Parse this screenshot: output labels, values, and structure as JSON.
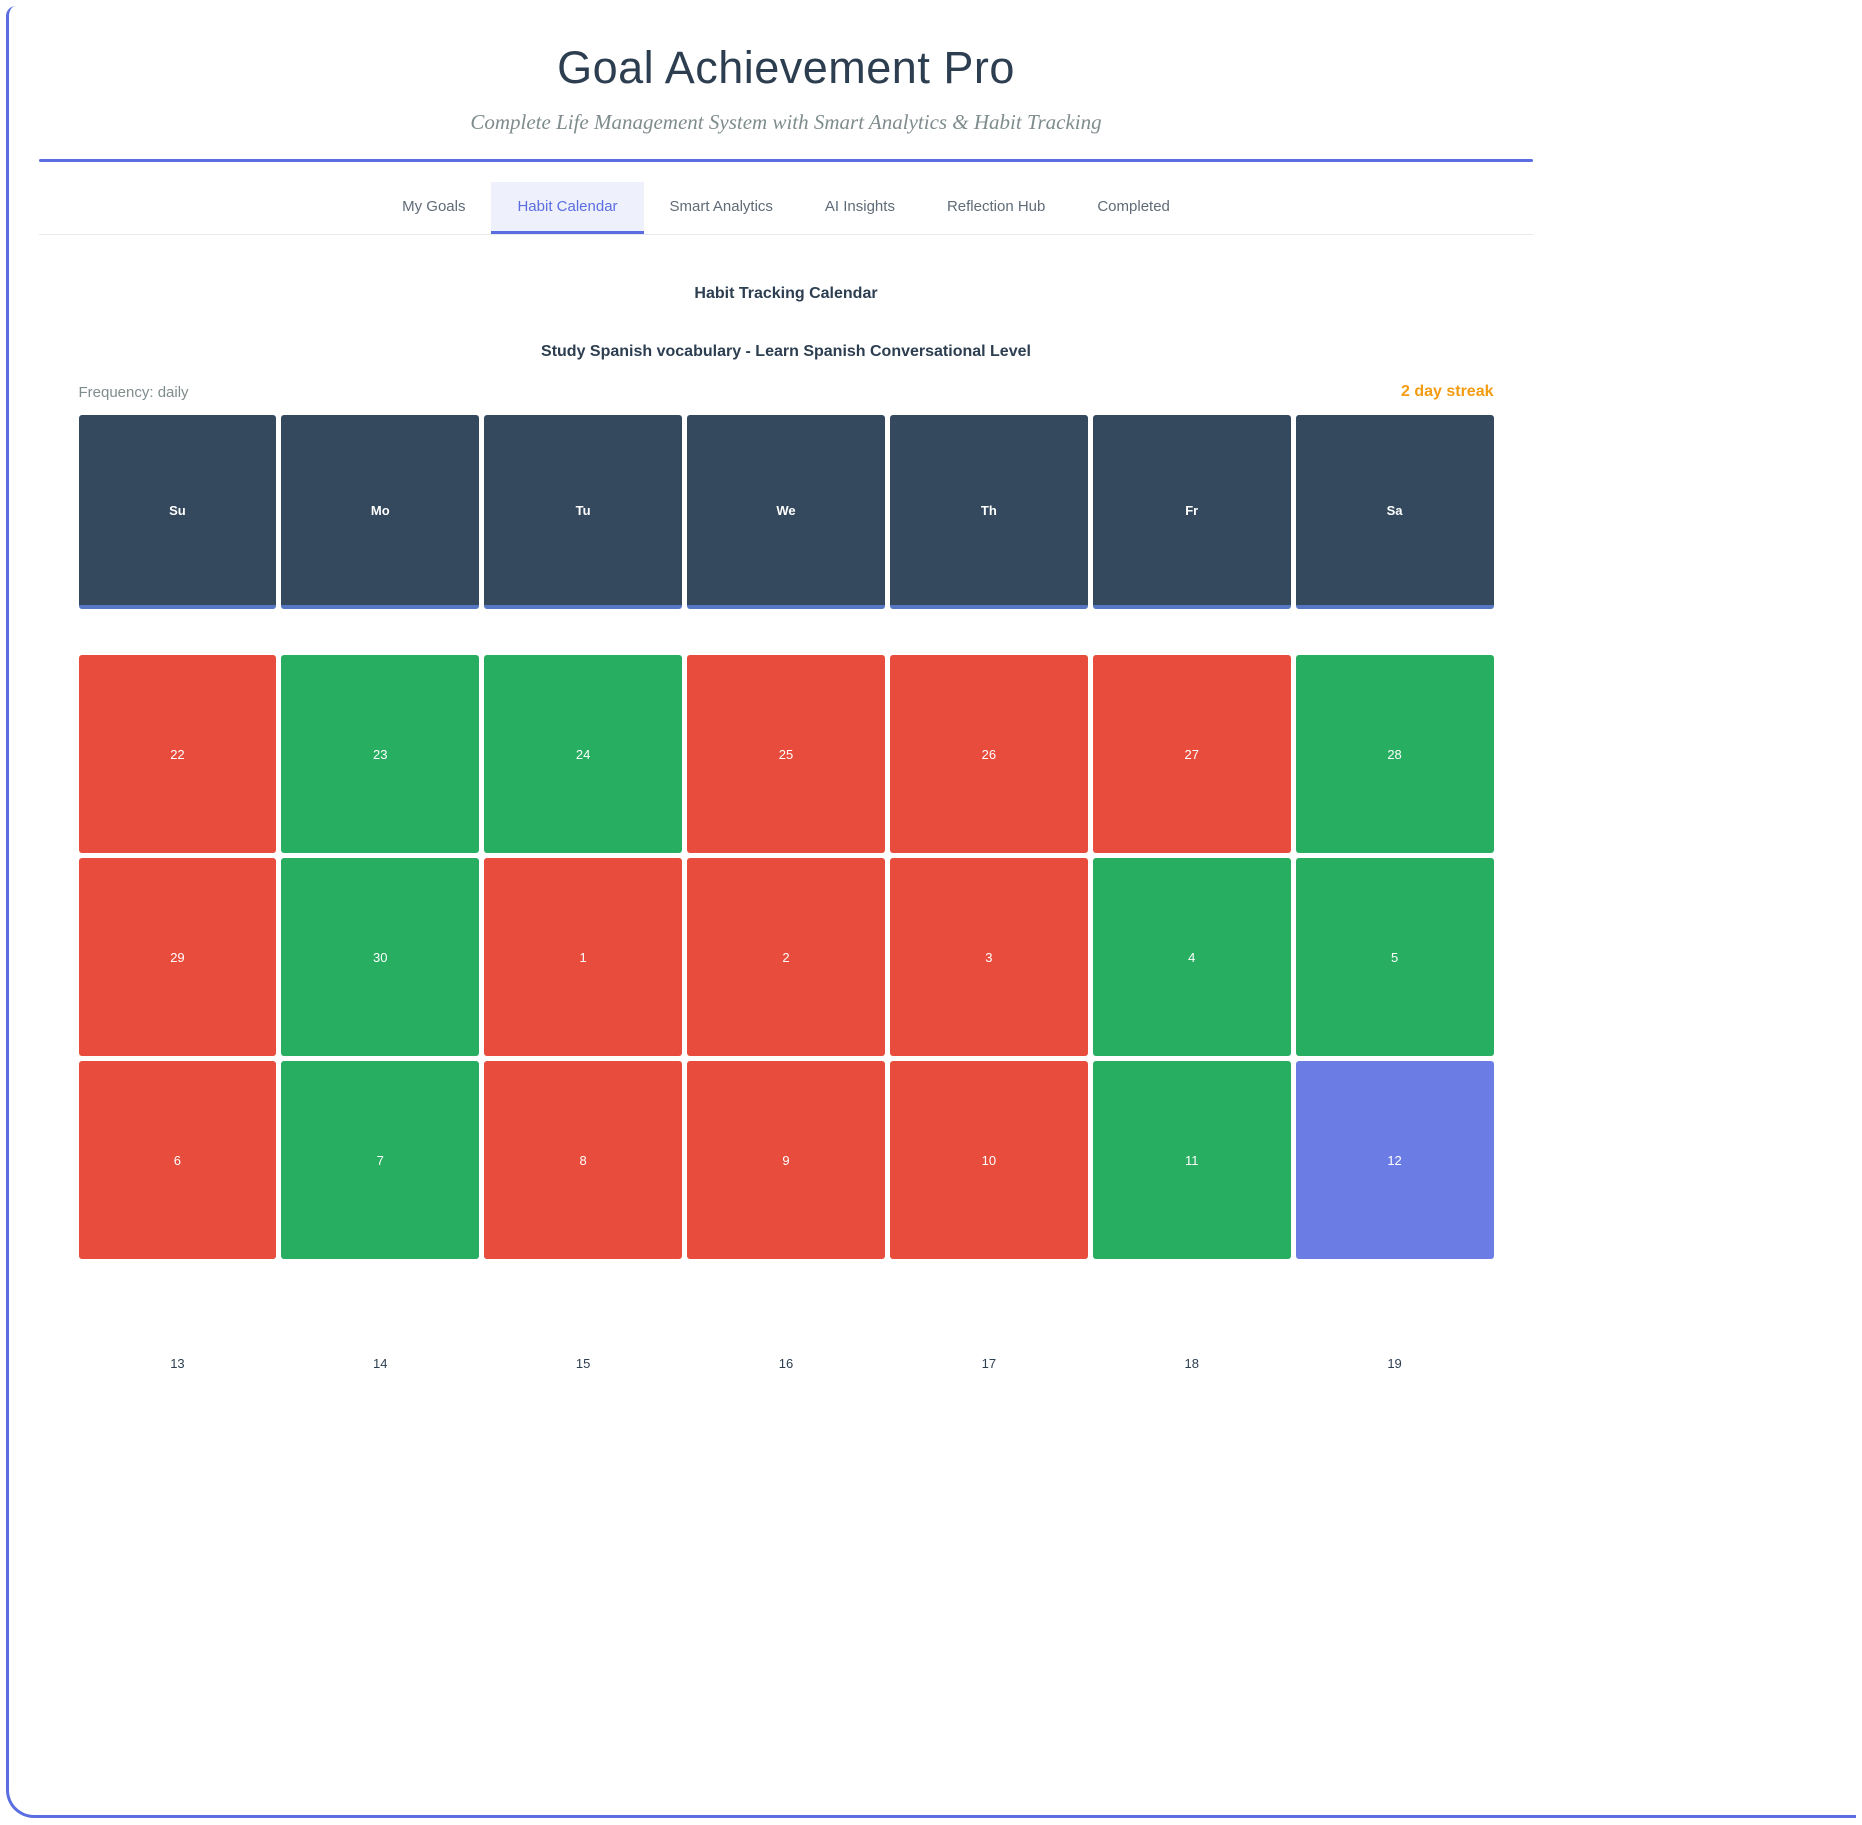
{
  "app": {
    "title": "Goal Achievement Pro",
    "subtitle": "Complete Life Management System with Smart Analytics & Habit Tracking"
  },
  "tabs": [
    {
      "label": "My Goals",
      "active": false
    },
    {
      "label": "Habit Calendar",
      "active": true
    },
    {
      "label": "Smart Analytics",
      "active": false
    },
    {
      "label": "AI Insights",
      "active": false
    },
    {
      "label": "Reflection Hub",
      "active": false
    },
    {
      "label": "Completed",
      "active": false
    }
  ],
  "calendar": {
    "heading": "Habit Tracking Calendar",
    "habit_title": "Study Spanish vocabulary - Learn Spanish Conversational Level",
    "frequency_label": "Frequency: daily",
    "streak_label": "2 day streak",
    "day_headers": [
      "Su",
      "Mo",
      "Tu",
      "We",
      "Th",
      "Fr",
      "Sa"
    ],
    "weeks": [
      [
        {
          "day": 22,
          "status": "missed"
        },
        {
          "day": 23,
          "status": "done"
        },
        {
          "day": 24,
          "status": "done"
        },
        {
          "day": 25,
          "status": "missed"
        },
        {
          "day": 26,
          "status": "missed"
        },
        {
          "day": 27,
          "status": "missed"
        },
        {
          "day": 28,
          "status": "done"
        }
      ],
      [
        {
          "day": 29,
          "status": "missed"
        },
        {
          "day": 30,
          "status": "done"
        },
        {
          "day": 1,
          "status": "missed"
        },
        {
          "day": 2,
          "status": "missed"
        },
        {
          "day": 3,
          "status": "missed"
        },
        {
          "day": 4,
          "status": "done"
        },
        {
          "day": 5,
          "status": "done"
        }
      ],
      [
        {
          "day": 6,
          "status": "missed"
        },
        {
          "day": 7,
          "status": "done"
        },
        {
          "day": 8,
          "status": "missed"
        },
        {
          "day": 9,
          "status": "missed"
        },
        {
          "day": 10,
          "status": "missed"
        },
        {
          "day": 11,
          "status": "done"
        },
        {
          "day": 12,
          "status": "today"
        }
      ],
      [
        {
          "day": 13,
          "status": "future"
        },
        {
          "day": 14,
          "status": "future"
        },
        {
          "day": 15,
          "status": "future"
        },
        {
          "day": 16,
          "status": "future"
        },
        {
          "day": 17,
          "status": "future"
        },
        {
          "day": 18,
          "status": "future"
        },
        {
          "day": 19,
          "status": "future"
        }
      ]
    ]
  },
  "colors": {
    "accent": "#5b6ee1",
    "header_cell": "#34495e",
    "header_cell_border": "#5577c4",
    "missed": "#e74c3c",
    "done": "#27ae60",
    "today": "#6b7de4",
    "streak": "#f39c12"
  }
}
